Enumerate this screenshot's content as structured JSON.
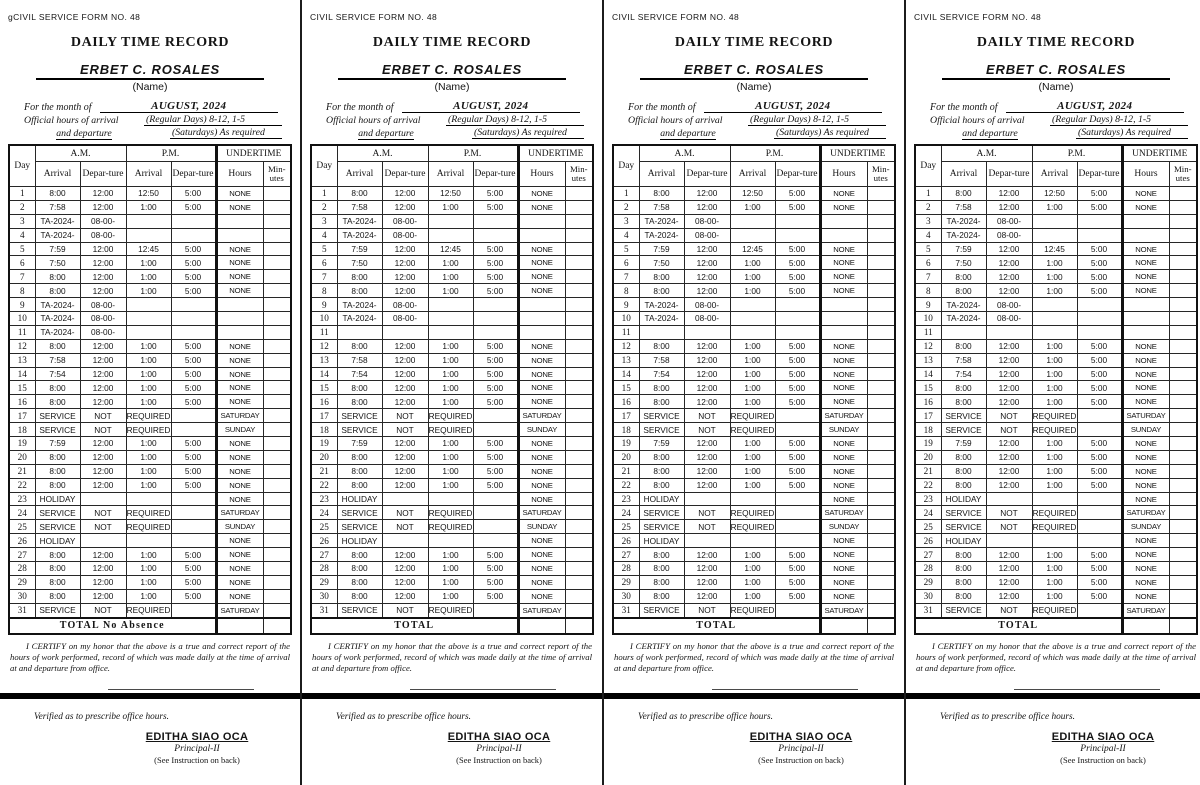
{
  "page": {
    "background": "#ffffff",
    "ink": "#141414"
  },
  "shared": {
    "form_no": "CIVIL SERVICE FORM NO. 48",
    "title": "DAILY TIME RECORD",
    "name": "ERBET C. ROSALES",
    "name_caption": "(Name)",
    "month_label": "For the month of",
    "month_value": "AUGUST, 2024",
    "official_line1_label": "Official hours of arrival",
    "official_line1_value": "(Regular Days) 8-12, 1-5",
    "official_line2_label": "and departure",
    "official_line2_value": "(Saturdays)  As required",
    "table": {
      "col_day": "Day",
      "col_am": "A.M.",
      "col_pm": "P.M.",
      "col_undertime": "UNDERTIME",
      "col_arrival": "Arrival",
      "col_departure": "Depar-ture",
      "col_hours": "Hours",
      "col_minutes": "Min-\nutes",
      "rows": [
        [
          "1",
          "8:00",
          "12:00",
          "12:50",
          "5:00",
          "NONE",
          ""
        ],
        [
          "2",
          "7:58",
          "12:00",
          "1:00",
          "5:00",
          "NONE",
          ""
        ],
        [
          "3",
          "TA-2024-",
          "08-00-",
          "",
          "",
          "",
          ""
        ],
        [
          "4",
          "TA-2024-",
          "08-00-",
          "",
          "",
          "",
          ""
        ],
        [
          "5",
          "7:59",
          "12:00",
          "12:45",
          "5:00",
          "NONE",
          ""
        ],
        [
          "6",
          "7:50",
          "12:00",
          "1:00",
          "5:00",
          "NONE",
          ""
        ],
        [
          "7",
          "8:00",
          "12:00",
          "1:00",
          "5:00",
          "NONE",
          ""
        ],
        [
          "8",
          "8:00",
          "12:00",
          "1:00",
          "5:00",
          "NONE",
          ""
        ],
        [
          "9",
          "TA-2024-",
          "08-00-",
          "",
          "",
          "",
          ""
        ],
        [
          "10",
          "TA-2024-",
          "08-00-",
          "",
          "",
          "",
          ""
        ],
        [
          "11",
          "",
          "",
          "",
          "",
          "",
          ""
        ],
        [
          "12",
          "8:00",
          "12:00",
          "1:00",
          "5:00",
          "NONE",
          ""
        ],
        [
          "13",
          "7:58",
          "12:00",
          "1:00",
          "5:00",
          "NONE",
          ""
        ],
        [
          "14",
          "7:54",
          "12:00",
          "1:00",
          "5:00",
          "NONE",
          ""
        ],
        [
          "15",
          "8:00",
          "12:00",
          "1:00",
          "5:00",
          "NONE",
          ""
        ],
        [
          "16",
          "8:00",
          "12:00",
          "1:00",
          "5:00",
          "NONE",
          ""
        ],
        [
          "17",
          "SERVICE",
          "NOT",
          "REQUIRED",
          "",
          "SATURDAY",
          ""
        ],
        [
          "18",
          "SERVICE",
          "NOT",
          "REQUIRED",
          "",
          "SUNDAY",
          ""
        ],
        [
          "19",
          "7:59",
          "12:00",
          "1:00",
          "5:00",
          "NONE",
          ""
        ],
        [
          "20",
          "8:00",
          "12:00",
          "1:00",
          "5:00",
          "NONE",
          ""
        ],
        [
          "21",
          "8:00",
          "12:00",
          "1:00",
          "5:00",
          "NONE",
          ""
        ],
        [
          "22",
          "8:00",
          "12:00",
          "1:00",
          "5:00",
          "NONE",
          ""
        ],
        [
          "23",
          "HOLIDAY",
          "",
          "",
          "",
          "NONE",
          ""
        ],
        [
          "24",
          "SERVICE",
          "NOT",
          "REQUIRED",
          "",
          "SATURDAY",
          ""
        ],
        [
          "25",
          "SERVICE",
          "NOT",
          "REQUIRED",
          "",
          "SUNDAY",
          ""
        ],
        [
          "26",
          "HOLIDAY",
          "",
          "",
          "",
          "NONE",
          ""
        ],
        [
          "27",
          "8:00",
          "12:00",
          "1:00",
          "5:00",
          "NONE",
          ""
        ],
        [
          "28",
          "8:00",
          "12:00",
          "1:00",
          "5:00",
          "NONE",
          ""
        ],
        [
          "29",
          "8:00",
          "12:00",
          "1:00",
          "5:00",
          "NONE",
          ""
        ],
        [
          "30",
          "8:00",
          "12:00",
          "1:00",
          "5:00",
          "NONE",
          ""
        ],
        [
          "31",
          "SERVICE",
          "NOT",
          "REQUIRED",
          "",
          "SATURDAY",
          ""
        ]
      ]
    },
    "total_label": "TOTAL",
    "certify_text": "I CERTIFY on my honor that the above is a true and correct report of the hours of work performed, record of which was made daily at the time of arrival at and departure from office.",
    "verified_text": "Verified as to prescribe office hours.",
    "signatory_name": "EDITHA SIAO OCA",
    "signatory_title": "Principal-II",
    "instruction_note": "(See Instruction on back)"
  },
  "copies": [
    {
      "form_no": "gCIVIL SERVICE FORM NO. 48",
      "total_label": "TOTAL  No Absence",
      "rows_override": {
        "11": [
          "11",
          "TA-2024-",
          "08-00-",
          "",
          "",
          "",
          ""
        ]
      }
    },
    {
      "form_no": "CIVIL SERVICE FORM NO. 48"
    },
    {
      "form_no": "CIVIL SERVICE FORM NO. 48"
    },
    {
      "form_no": "CIVIL SERVICE FORM NO. 48"
    }
  ]
}
